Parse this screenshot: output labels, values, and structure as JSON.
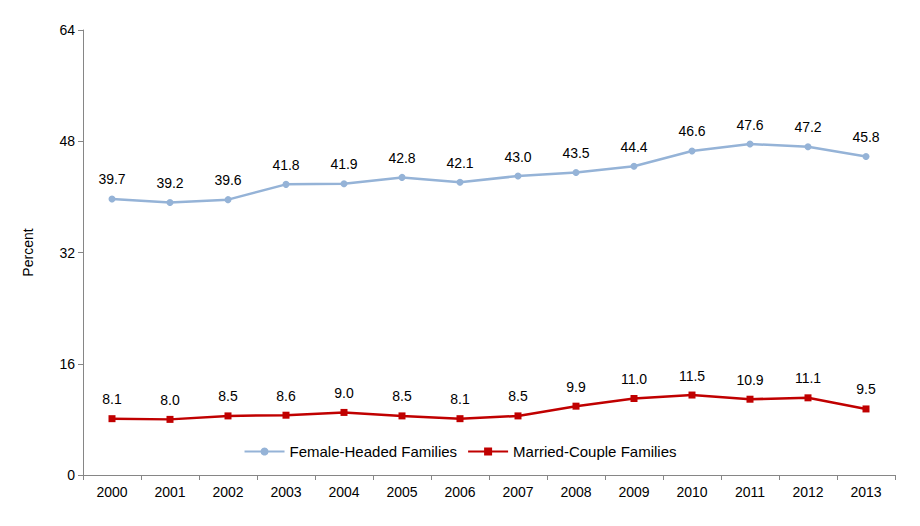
{
  "chart_data": {
    "type": "line",
    "y_label": "Percent",
    "categories": [
      "2000",
      "2001",
      "2002",
      "2003",
      "2004",
      "2005",
      "2006",
      "2007",
      "2008",
      "2009",
      "2010",
      "2011",
      "2012",
      "2013"
    ],
    "series": [
      {
        "name": "Female-Headed Families",
        "color": "#95b3d7",
        "marker": "circle",
        "values": [
          39.7,
          39.2,
          39.6,
          41.8,
          41.9,
          42.8,
          42.1,
          43.0,
          43.5,
          44.4,
          46.6,
          47.6,
          47.2,
          45.8
        ],
        "value_labels": [
          "39.7",
          "39.2",
          "39.6",
          "41.8",
          "41.9",
          "42.8",
          "42.1",
          "43.0",
          "43.5",
          "44.4",
          "46.6",
          "47.6",
          "47.2",
          "45.8"
        ]
      },
      {
        "name": "Married-Couple Families",
        "color": "#c00000",
        "marker": "square",
        "values": [
          8.1,
          8.0,
          8.5,
          8.6,
          9.0,
          8.5,
          8.1,
          8.5,
          9.9,
          11.0,
          11.5,
          10.9,
          11.1,
          9.5
        ],
        "value_labels": [
          "8.1",
          "8.0",
          "8.5",
          "8.6",
          "9.0",
          "8.5",
          "8.1",
          "8.5",
          "9.9",
          "11.0",
          "11.5",
          "10.9",
          "11.1",
          "9.5"
        ]
      }
    ],
    "ylim": [
      0,
      64
    ],
    "yticks": [
      0,
      16,
      32,
      48,
      64
    ],
    "grid": false,
    "legend": "bottom",
    "data_labels": true
  }
}
